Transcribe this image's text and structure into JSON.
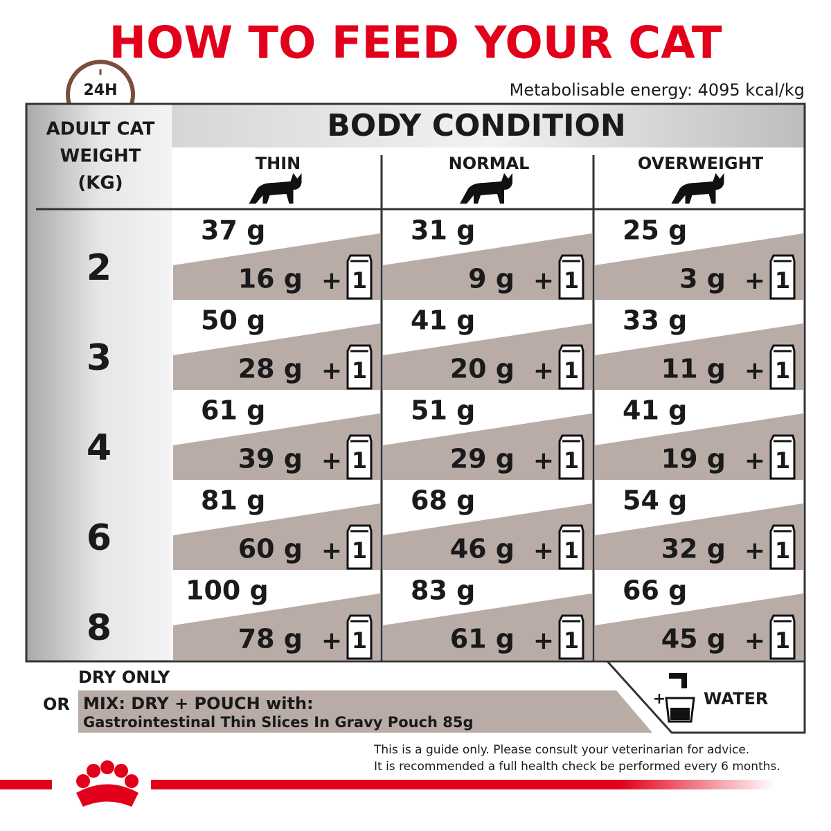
{
  "header": {
    "title": "HOW TO FEED YOUR CAT",
    "clock_label": "24H",
    "energy": "Metabolisable energy: 4095 kcal/kg"
  },
  "table": {
    "weight_header": [
      "ADULT CAT",
      "WEIGHT",
      "(KG)"
    ],
    "group_header": "BODY CONDITION",
    "columns": [
      "THIN",
      "NORMAL",
      "OVERWEIGHT"
    ],
    "plus": "+",
    "pouch_count": "1",
    "rows": [
      {
        "weight": "2",
        "cells": [
          {
            "dry": "37 g",
            "mix": "16 g"
          },
          {
            "dry": "31 g",
            "mix": "9 g"
          },
          {
            "dry": "25 g",
            "mix": "3 g"
          }
        ]
      },
      {
        "weight": "3",
        "cells": [
          {
            "dry": "50 g",
            "mix": "28 g"
          },
          {
            "dry": "41 g",
            "mix": "20 g"
          },
          {
            "dry": "33 g",
            "mix": "11 g"
          }
        ]
      },
      {
        "weight": "4",
        "cells": [
          {
            "dry": "61 g",
            "mix": "39 g"
          },
          {
            "dry": "51 g",
            "mix": "29 g"
          },
          {
            "dry": "41 g",
            "mix": "19 g"
          }
        ]
      },
      {
        "weight": "6",
        "cells": [
          {
            "dry": "81 g",
            "mix": "60 g"
          },
          {
            "dry": "68 g",
            "mix": "46 g"
          },
          {
            "dry": "54 g",
            "mix": "32 g"
          }
        ]
      },
      {
        "weight": "8",
        "cells": [
          {
            "dry": "100 g",
            "mix": "78 g"
          },
          {
            "dry": "83 g",
            "mix": "61 g"
          },
          {
            "dry": "66 g",
            "mix": "45 g"
          }
        ]
      }
    ]
  },
  "legend": {
    "dry_only": "DRY ONLY",
    "or": "OR",
    "mix_title": "MIX: DRY + POUCH with:",
    "mix_product": "Gastrointestinal Thin Slices In Gravy Pouch 85g",
    "water_plus": "+",
    "water": "WATER"
  },
  "footer": {
    "disclaimer": [
      "This is a guide only. Please consult your veterinarian for advice.",
      "It is recommended a full health check be performed every 6 months."
    ]
  }
}
